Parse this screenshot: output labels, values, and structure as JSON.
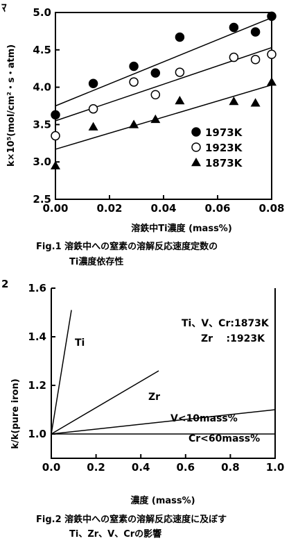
{
  "chart_data": [
    {
      "type": "scatter",
      "xlabel": "溶鉄中Ti濃度 (mass%)",
      "ylabel": "k×10⁵(mol/cm²・s・atm)",
      "xlim": [
        0.0,
        0.08
      ],
      "ylim": [
        2.5,
        5.0
      ],
      "x_ticks": [
        "0.00",
        "0.02",
        "0.04",
        "0.06",
        "0.08"
      ],
      "y_ticks": [
        "2.5",
        "3.0",
        "3.5",
        "4.0",
        "4.5",
        "5.0"
      ],
      "legend": "bottom-right",
      "series": [
        {
          "name": "1973K",
          "marker": "filled-circle",
          "points": [
            [
              0.0,
              3.63
            ],
            [
              0.014,
              4.05
            ],
            [
              0.029,
              4.28
            ],
            [
              0.037,
              4.19
            ],
            [
              0.046,
              4.67
            ],
            [
              0.066,
              4.8
            ],
            [
              0.074,
              4.74
            ],
            [
              0.08,
              4.95
            ]
          ],
          "fit": [
            [
              0.0,
              3.75
            ],
            [
              0.08,
              4.93
            ]
          ]
        },
        {
          "name": "1923K",
          "marker": "open-circle",
          "points": [
            [
              0.0,
              3.35
            ],
            [
              0.014,
              3.71
            ],
            [
              0.029,
              4.07
            ],
            [
              0.037,
              3.9
            ],
            [
              0.046,
              4.2
            ],
            [
              0.066,
              4.4
            ],
            [
              0.074,
              4.37
            ],
            [
              0.08,
              4.44
            ]
          ],
          "fit": [
            [
              0.0,
              3.55
            ],
            [
              0.08,
              4.53
            ]
          ]
        },
        {
          "name": "1873K",
          "marker": "filled-triangle",
          "points": [
            [
              0.0,
              2.95
            ],
            [
              0.014,
              3.47
            ],
            [
              0.029,
              3.5
            ],
            [
              0.037,
              3.57
            ],
            [
              0.046,
              3.82
            ],
            [
              0.066,
              3.81
            ],
            [
              0.074,
              3.79
            ],
            [
              0.08,
              4.07
            ]
          ],
          "fit": [
            [
              0.0,
              3.17
            ],
            [
              0.08,
              4.03
            ]
          ]
        }
      ],
      "caption": [
        "Fig.1 溶鉄中への窒素の溶解反応速度定数の",
        "Ti濃度依存性"
      ]
    },
    {
      "type": "line",
      "xlabel": "濃度 (mass%)",
      "ylabel": "k/k(pure iron)",
      "xlim": [
        0.0,
        1.0
      ],
      "ylim": [
        0.9,
        1.6
      ],
      "x_ticks": [
        "0.0",
        "0.2",
        "0.4",
        "0.6",
        "0.8",
        "1.0"
      ],
      "y_ticks": [
        "1.0",
        "1.2",
        "1.4",
        "1.6"
      ],
      "series": [
        {
          "name": "Ti",
          "points": [
            [
              0.0,
              1.0
            ],
            [
              0.09,
              1.51
            ]
          ]
        },
        {
          "name": "Zr",
          "points": [
            [
              0.0,
              1.0
            ],
            [
              0.48,
              1.26
            ]
          ]
        },
        {
          "name": "V<10mass%",
          "points": [
            [
              0.0,
              1.0
            ],
            [
              1.0,
              1.1
            ]
          ]
        },
        {
          "name": "Cr<60mass%",
          "points": [
            [
              0.0,
              1.0
            ],
            [
              1.0,
              1.0
            ]
          ]
        }
      ],
      "annotations": [
        "Ti、V、Cr:1873K",
        "Zr    :1923K"
      ],
      "caption": [
        "Fig.2 溶鉄中への窒素の溶解反応速度に及ぼす",
        "Ti、Zr、V、Crの影響"
      ]
    }
  ],
  "edge_fragments": [
    "ﾏ",
    "2"
  ]
}
